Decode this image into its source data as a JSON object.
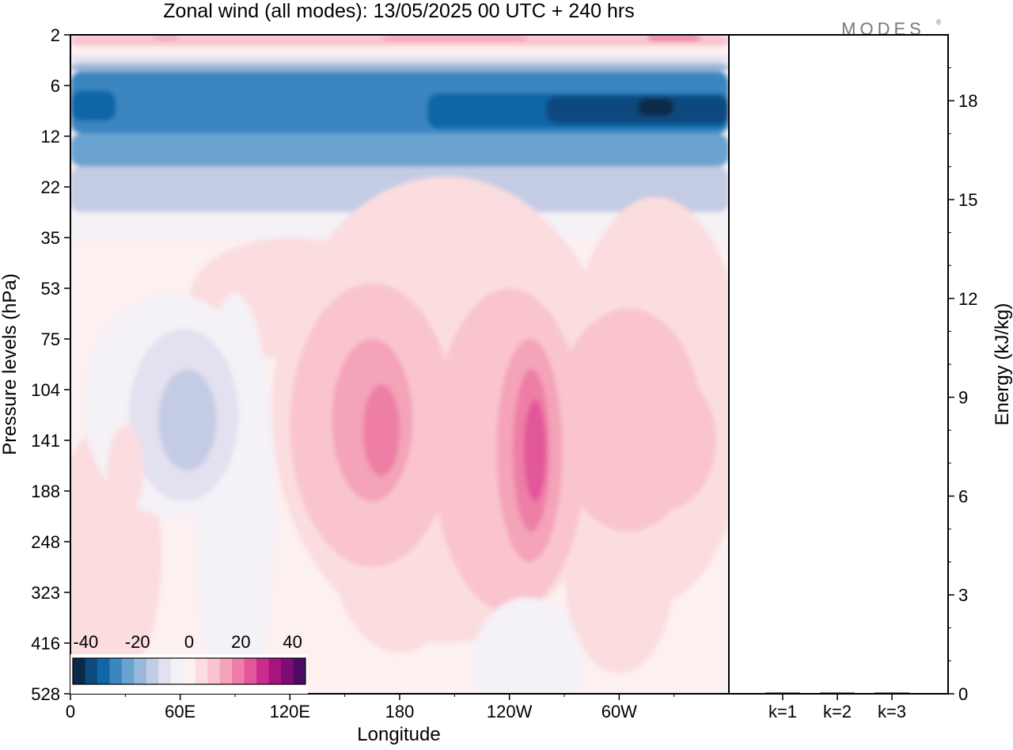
{
  "title": "Zonal wind (all modes):  13/05/2025  00 UTC  + 240 hrs",
  "brand": "MODES",
  "brand_mark": "®",
  "chart_data": [
    {
      "type": "heatmap",
      "title": "Zonal wind (all modes):  13/05/2025  00 UTC  + 240 hrs",
      "xlabel": "Longitude",
      "ylabel": "Pressure levels (hPa)",
      "x_ticks": [
        "0",
        "60E",
        "120E",
        "180",
        "120W",
        "60W"
      ],
      "x_tick_degrees": [
        0,
        60,
        120,
        180,
        240,
        300
      ],
      "xlim": [
        0,
        360
      ],
      "y_ticks": [
        "2",
        "6",
        "12",
        "22",
        "35",
        "53",
        "75",
        "104",
        "141",
        "188",
        "248",
        "323",
        "416",
        "528"
      ],
      "y_scale": "categorical model levels, 2 hPa at top to 528 hPa at bottom",
      "colorbar": {
        "ticks": [
          "-40",
          "-20",
          "0",
          "20",
          "40"
        ],
        "range": [
          -45,
          45
        ],
        "step": 5,
        "colors": [
          "#0b2a47",
          "#0d4a7e",
          "#1166a8",
          "#3a86c0",
          "#6aa3cf",
          "#98b8d9",
          "#c4cce4",
          "#e3e1ef",
          "#f4f1f7",
          "#fdf0f0",
          "#fbdde0",
          "#f9c4ce",
          "#f4a3b8",
          "#ee7ea5",
          "#e2569a",
          "#c92c8c",
          "#a6147e",
          "#7d0d73",
          "#4f0b63"
        ]
      },
      "features": [
        {
          "level": "8-10 hPa",
          "value": -40,
          "note": "strongest easterly core near 80W"
        },
        {
          "level": "6-18 hPa",
          "value": -30,
          "note": "easterly jet across all longitudes"
        },
        {
          "level": "2-4 hPa",
          "value": 15,
          "note": "weak westerlies at model top"
        },
        {
          "level": "104-170 hPa",
          "lon": "60E-70E",
          "value": -15
        },
        {
          "level": "120-180 hPa",
          "lon": "125W",
          "value": 25
        },
        {
          "level": "110-150 hPa",
          "lon": "165W",
          "value": 20
        },
        {
          "level": "100-160 hPa",
          "lon": "40W-20W",
          "value": 10
        }
      ]
    },
    {
      "type": "bar",
      "categories": [
        "k=1",
        "k=2",
        "k=3"
      ],
      "values": [
        0.02,
        0.02,
        0.02
      ],
      "ylabel": "Energy (kJ/kg)",
      "y_ticks": [
        "0",
        "3",
        "6",
        "9",
        "12",
        "15",
        "18"
      ],
      "ylim": [
        0,
        20
      ],
      "position": "right panel"
    }
  ]
}
